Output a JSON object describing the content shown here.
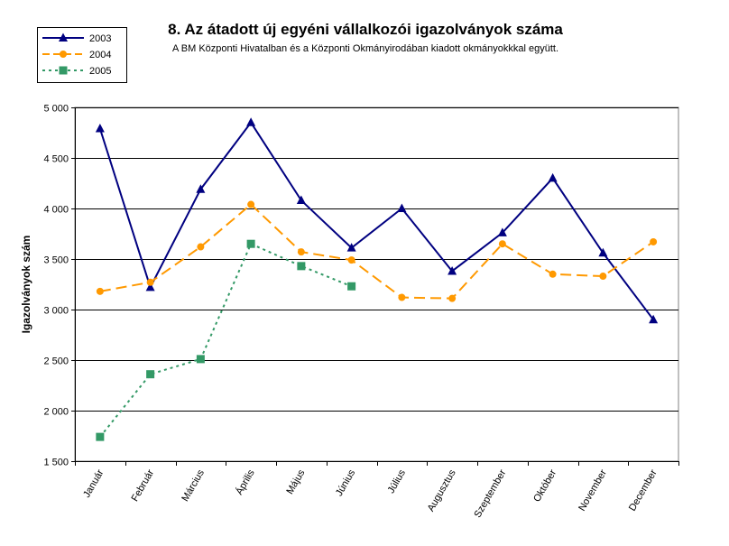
{
  "chart_data": {
    "type": "line",
    "title": "8. Az átadott új egyéni vállalkozói  igazolványok száma",
    "subtitle": "A BM Központi Hivatalban és a Központi Okmányirodában kiadott okmányokkkal együtt.",
    "ylabel": "Igazolványok szám",
    "xlabel": "",
    "ylim": [
      1500,
      5000
    ],
    "yticks": [
      1500,
      2000,
      2500,
      3000,
      3500,
      4000,
      4500,
      5000
    ],
    "ytick_labels": [
      "1 500",
      "2 000",
      "2 500",
      "3 000",
      "3 500",
      "4 000",
      "4 500",
      "5 000"
    ],
    "grid": true,
    "legend_position": "top-left",
    "categories": [
      "Január",
      "Február",
      "Március",
      "Április",
      "Május",
      "Június",
      "Július",
      "Augusztus",
      "Szeptember",
      "Október",
      "November",
      "December"
    ],
    "series": [
      {
        "name": "2003",
        "color": "#000080",
        "marker": "triangle",
        "dash": "solid",
        "values": [
          4790,
          3220,
          4190,
          4850,
          4080,
          3610,
          4000,
          3380,
          3760,
          4300,
          3560,
          2900
        ]
      },
      {
        "name": "2004",
        "color": "#FF9900",
        "marker": "circle",
        "dash": "dashed",
        "values": [
          3180,
          3270,
          3620,
          4040,
          3570,
          3490,
          3120,
          3110,
          3650,
          3350,
          3330,
          3670
        ]
      },
      {
        "name": "2005",
        "color": "#339966",
        "marker": "square",
        "dash": "dotted",
        "values": [
          1740,
          2360,
          2510,
          3650,
          3430,
          3230,
          null,
          null,
          null,
          null,
          null,
          null
        ]
      }
    ]
  }
}
